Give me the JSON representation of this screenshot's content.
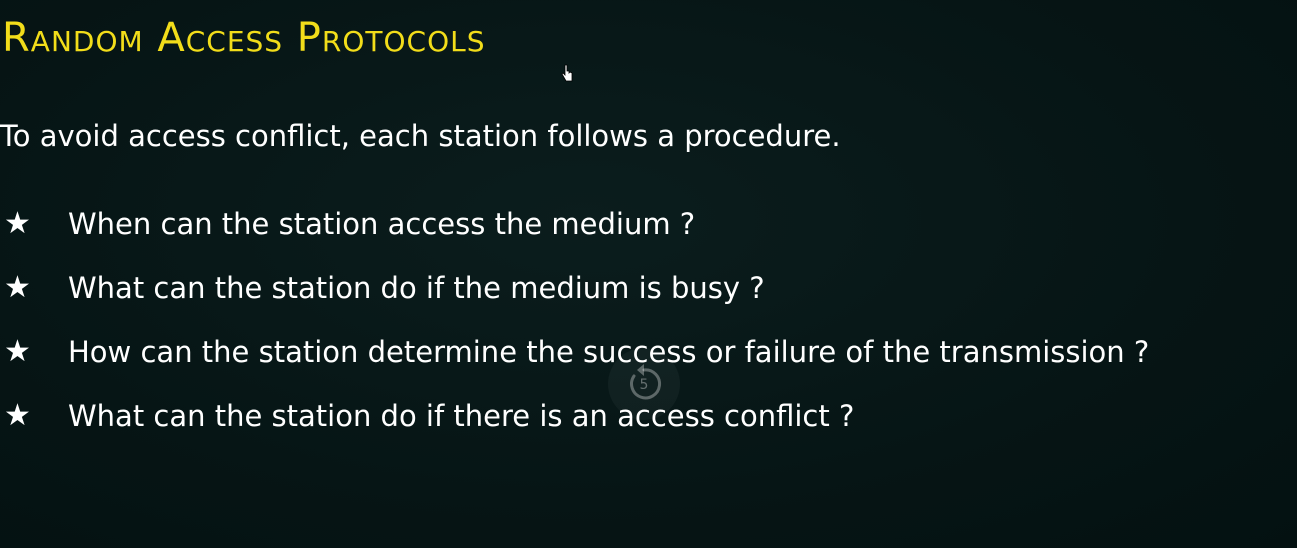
{
  "slide": {
    "title": "Random Access Protocols",
    "intro": "To avoid access conflict, each station follows a procedure.",
    "bullets": [
      {
        "icon": "star-icon",
        "text": "When can the station access the medium ?"
      },
      {
        "icon": "star-icon",
        "text": "What can the station do if the medium is busy ?"
      },
      {
        "icon": "star-icon",
        "text": "How can the station determine the success or failure of the transmission ?"
      },
      {
        "icon": "star-icon",
        "text": "What can the station do if there is an access conflict ?"
      }
    ],
    "bullet_glyph": "★"
  },
  "overlay": {
    "replay_icon": "replay-5-seconds-icon",
    "replay_seconds": "5",
    "cursor_icon": "hand-pointer-icon"
  },
  "colors": {
    "background": "#061515",
    "title": "#f2dd1a",
    "text": "#ffffff"
  }
}
